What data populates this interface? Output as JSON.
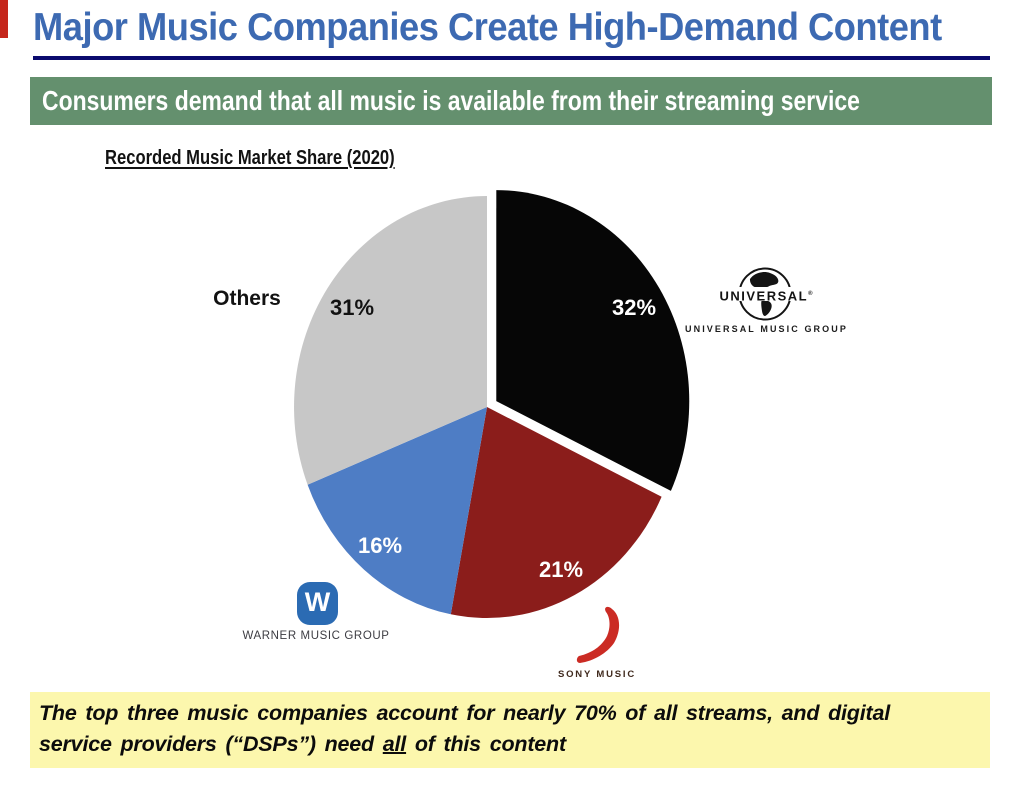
{
  "slide": {
    "title": "Major Music Companies Create High-Demand Content",
    "banner": "Consumers demand that all music is available from their streaming service",
    "callout": {
      "line1": "The top three music companies account for nearly 70% of all streams, and digital",
      "line2_pre": "service providers (“DSPs”) need ",
      "line2_underline": "all",
      "line2_post": " of this content"
    }
  },
  "chart_data": {
    "type": "pie",
    "title": "Recorded Music Market Share (2020)",
    "unit": "percent of recorded music market share",
    "total": 100,
    "start_angle_deg": 0,
    "direction": "clockwise",
    "legend": "none (labels placed on/around slices)",
    "slices": [
      {
        "name": "Universal Music Group",
        "value": 32,
        "label": "32%",
        "color": "#060606",
        "label_color": "#ffffff",
        "exploded": true
      },
      {
        "name": "Sony Music",
        "value": 21,
        "label": "21%",
        "color": "#8b1d1b",
        "label_color": "#ffffff",
        "exploded": false
      },
      {
        "name": "Warner Music Group",
        "value": 16,
        "label": "16%",
        "color": "#4e7dc5",
        "label_color": "#ffffff",
        "exploded": false
      },
      {
        "name": "Others",
        "value": 31,
        "label": "31%",
        "color": "#c7c7c7",
        "label_color": "#121212",
        "exploded": false
      }
    ]
  },
  "logos": {
    "universal": {
      "wordmark": "UNIVERSAL",
      "reg": "®",
      "caption": "UNIVERSAL MUSIC GROUP"
    },
    "warner": {
      "monogram": "W",
      "caption": "WARNER MUSIC GROUP"
    },
    "sony": {
      "caption": "SONY MUSIC"
    }
  },
  "colors": {
    "title_blue": "#3d6ab2",
    "rule_navy": "#0a0a6e",
    "banner_green": "#64906e",
    "banner_text": "#ffffff",
    "callout_yellow": "#fcf7ad",
    "corner_mark_red": "#c5261b",
    "warner_blue": "#2b6bb3",
    "sony_red": "#cb2b24"
  }
}
